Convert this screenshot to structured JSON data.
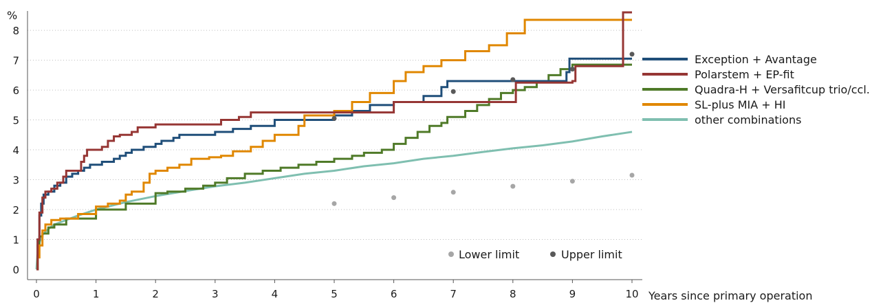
{
  "chart_data": {
    "type": "line",
    "xlabel": "Years since primary operation",
    "ylabel": "%",
    "xlim": [
      0,
      10
    ],
    "ylim": [
      0,
      8.6
    ],
    "xticks": [
      "0",
      "1",
      "2",
      "3",
      "4",
      "5",
      "6",
      "7",
      "8",
      "9",
      "10"
    ],
    "yticks": [
      "0",
      "1",
      "2",
      "3",
      "4",
      "5",
      "6",
      "7",
      "8"
    ],
    "grid": "horizontal",
    "legend_position": "right",
    "series": [
      {
        "name": "Exception + Avantage",
        "color": "#1f4e79",
        "step": true,
        "points": [
          [
            0,
            0
          ],
          [
            0.02,
            1.0
          ],
          [
            0.05,
            1.8
          ],
          [
            0.08,
            2.2
          ],
          [
            0.12,
            2.5
          ],
          [
            0.2,
            2.6
          ],
          [
            0.3,
            2.8
          ],
          [
            0.4,
            2.9
          ],
          [
            0.5,
            3.1
          ],
          [
            0.6,
            3.2
          ],
          [
            0.7,
            3.3
          ],
          [
            0.8,
            3.4
          ],
          [
            0.9,
            3.5
          ],
          [
            1.0,
            3.5
          ],
          [
            1.1,
            3.6
          ],
          [
            1.3,
            3.7
          ],
          [
            1.4,
            3.8
          ],
          [
            1.5,
            3.9
          ],
          [
            1.6,
            4.0
          ],
          [
            1.8,
            4.1
          ],
          [
            2.0,
            4.2
          ],
          [
            2.1,
            4.3
          ],
          [
            2.3,
            4.4
          ],
          [
            2.4,
            4.5
          ],
          [
            2.6,
            4.5
          ],
          [
            2.8,
            4.5
          ],
          [
            3.0,
            4.6
          ],
          [
            3.3,
            4.7
          ],
          [
            3.6,
            4.8
          ],
          [
            4.0,
            5.0
          ],
          [
            4.2,
            5.0
          ],
          [
            5.0,
            5.15
          ],
          [
            5.3,
            5.3
          ],
          [
            5.6,
            5.5
          ],
          [
            6.0,
            5.6
          ],
          [
            6.5,
            5.8
          ],
          [
            6.8,
            6.1
          ],
          [
            6.9,
            6.3
          ],
          [
            7.5,
            6.3
          ],
          [
            8.0,
            6.3
          ],
          [
            8.9,
            6.6
          ],
          [
            8.95,
            7.05
          ],
          [
            10.0,
            7.05
          ]
        ]
      },
      {
        "name": "Polarstem + EP-fit",
        "color": "#963634",
        "step": true,
        "points": [
          [
            0,
            0
          ],
          [
            0.02,
            1.0
          ],
          [
            0.05,
            1.9
          ],
          [
            0.1,
            2.4
          ],
          [
            0.15,
            2.6
          ],
          [
            0.25,
            2.7
          ],
          [
            0.35,
            2.9
          ],
          [
            0.45,
            3.1
          ],
          [
            0.5,
            3.3
          ],
          [
            0.7,
            3.3
          ],
          [
            0.75,
            3.6
          ],
          [
            0.8,
            3.8
          ],
          [
            0.85,
            4.0
          ],
          [
            1.1,
            4.1
          ],
          [
            1.2,
            4.3
          ],
          [
            1.3,
            4.45
          ],
          [
            1.4,
            4.5
          ],
          [
            1.6,
            4.6
          ],
          [
            1.7,
            4.75
          ],
          [
            2.0,
            4.85
          ],
          [
            3.0,
            4.85
          ],
          [
            3.1,
            5.0
          ],
          [
            3.4,
            5.1
          ],
          [
            3.6,
            5.25
          ],
          [
            5.0,
            5.25
          ],
          [
            5.5,
            5.25
          ],
          [
            6.0,
            5.6
          ],
          [
            6.5,
            5.6
          ],
          [
            8.0,
            5.6
          ],
          [
            8.05,
            6.25
          ],
          [
            9.0,
            6.3
          ],
          [
            9.05,
            6.8
          ],
          [
            9.6,
            6.8
          ],
          [
            9.85,
            8.6
          ],
          [
            10.0,
            8.6
          ]
        ]
      },
      {
        "name": "Quadra-H + Versafitcup trio/ccl.",
        "color": "#4f7a28",
        "step": true,
        "points": [
          [
            0,
            0
          ],
          [
            0.02,
            0.8
          ],
          [
            0.05,
            1.1
          ],
          [
            0.1,
            1.2
          ],
          [
            0.2,
            1.4
          ],
          [
            0.3,
            1.5
          ],
          [
            0.5,
            1.7
          ],
          [
            1.0,
            2.0
          ],
          [
            1.5,
            2.2
          ],
          [
            2.0,
            2.55
          ],
          [
            2.2,
            2.6
          ],
          [
            2.5,
            2.7
          ],
          [
            2.8,
            2.8
          ],
          [
            3.0,
            2.9
          ],
          [
            3.2,
            3.05
          ],
          [
            3.5,
            3.2
          ],
          [
            3.8,
            3.3
          ],
          [
            4.1,
            3.4
          ],
          [
            4.4,
            3.5
          ],
          [
            4.7,
            3.6
          ],
          [
            5.0,
            3.7
          ],
          [
            5.3,
            3.8
          ],
          [
            5.5,
            3.9
          ],
          [
            5.8,
            4.0
          ],
          [
            6.0,
            4.2
          ],
          [
            6.2,
            4.4
          ],
          [
            6.4,
            4.6
          ],
          [
            6.6,
            4.8
          ],
          [
            6.8,
            4.9
          ],
          [
            6.9,
            5.1
          ],
          [
            7.2,
            5.3
          ],
          [
            7.4,
            5.5
          ],
          [
            7.6,
            5.7
          ],
          [
            7.8,
            5.9
          ],
          [
            8.0,
            6.0
          ],
          [
            8.2,
            6.1
          ],
          [
            8.4,
            6.3
          ],
          [
            8.6,
            6.5
          ],
          [
            8.8,
            6.7
          ],
          [
            9.0,
            6.85
          ],
          [
            10.0,
            6.85
          ]
        ]
      },
      {
        "name": "SL-plus MIA + HI",
        "color": "#e08700",
        "step": true,
        "points": [
          [
            0,
            0
          ],
          [
            0.02,
            0.4
          ],
          [
            0.05,
            0.8
          ],
          [
            0.1,
            1.3
          ],
          [
            0.15,
            1.5
          ],
          [
            0.25,
            1.65
          ],
          [
            0.4,
            1.7
          ],
          [
            0.7,
            1.85
          ],
          [
            1.0,
            2.1
          ],
          [
            1.2,
            2.2
          ],
          [
            1.4,
            2.3
          ],
          [
            1.5,
            2.5
          ],
          [
            1.6,
            2.6
          ],
          [
            1.8,
            2.9
          ],
          [
            1.9,
            3.2
          ],
          [
            2.0,
            3.3
          ],
          [
            2.2,
            3.4
          ],
          [
            2.4,
            3.5
          ],
          [
            2.6,
            3.7
          ],
          [
            2.9,
            3.75
          ],
          [
            3.1,
            3.8
          ],
          [
            3.3,
            3.95
          ],
          [
            3.6,
            4.1
          ],
          [
            3.8,
            4.3
          ],
          [
            4.0,
            4.5
          ],
          [
            4.4,
            4.8
          ],
          [
            4.5,
            5.15
          ],
          [
            5.0,
            5.3
          ],
          [
            5.3,
            5.6
          ],
          [
            5.6,
            5.9
          ],
          [
            6.0,
            6.3
          ],
          [
            6.2,
            6.6
          ],
          [
            6.5,
            6.8
          ],
          [
            6.8,
            7.0
          ],
          [
            7.2,
            7.3
          ],
          [
            7.6,
            7.5
          ],
          [
            7.9,
            7.9
          ],
          [
            8.2,
            8.35
          ],
          [
            10.0,
            8.35
          ]
        ]
      },
      {
        "name": "other combinations",
        "color": "#7fbfb0",
        "step": false,
        "points": [
          [
            0,
            0
          ],
          [
            0.02,
            0.6
          ],
          [
            0.05,
            0.9
          ],
          [
            0.1,
            1.15
          ],
          [
            0.2,
            1.35
          ],
          [
            0.3,
            1.5
          ],
          [
            0.5,
            1.65
          ],
          [
            0.7,
            1.8
          ],
          [
            1.0,
            2.0
          ],
          [
            1.5,
            2.25
          ],
          [
            2.0,
            2.45
          ],
          [
            2.5,
            2.62
          ],
          [
            3.0,
            2.78
          ],
          [
            3.5,
            2.9
          ],
          [
            4.0,
            3.05
          ],
          [
            4.5,
            3.2
          ],
          [
            5.0,
            3.3
          ],
          [
            5.5,
            3.45
          ],
          [
            6.0,
            3.55
          ],
          [
            6.5,
            3.7
          ],
          [
            7.0,
            3.8
          ],
          [
            7.5,
            3.93
          ],
          [
            8.0,
            4.05
          ],
          [
            8.5,
            4.15
          ],
          [
            9.0,
            4.28
          ],
          [
            9.5,
            4.45
          ],
          [
            10.0,
            4.6
          ]
        ]
      }
    ],
    "limits": {
      "lower": {
        "name": "Lower limit",
        "color": "#a6a6a6",
        "points": [
          [
            5,
            2.2
          ],
          [
            6,
            2.4
          ],
          [
            7,
            2.58
          ],
          [
            8,
            2.78
          ],
          [
            9,
            2.95
          ],
          [
            10,
            3.15
          ]
        ]
      },
      "upper": {
        "name": "Upper limit",
        "color": "#595959",
        "points": [
          [
            5,
            5.05
          ],
          [
            7,
            5.95
          ],
          [
            8,
            6.35
          ],
          [
            9,
            6.7
          ],
          [
            10,
            7.2
          ]
        ]
      }
    }
  }
}
